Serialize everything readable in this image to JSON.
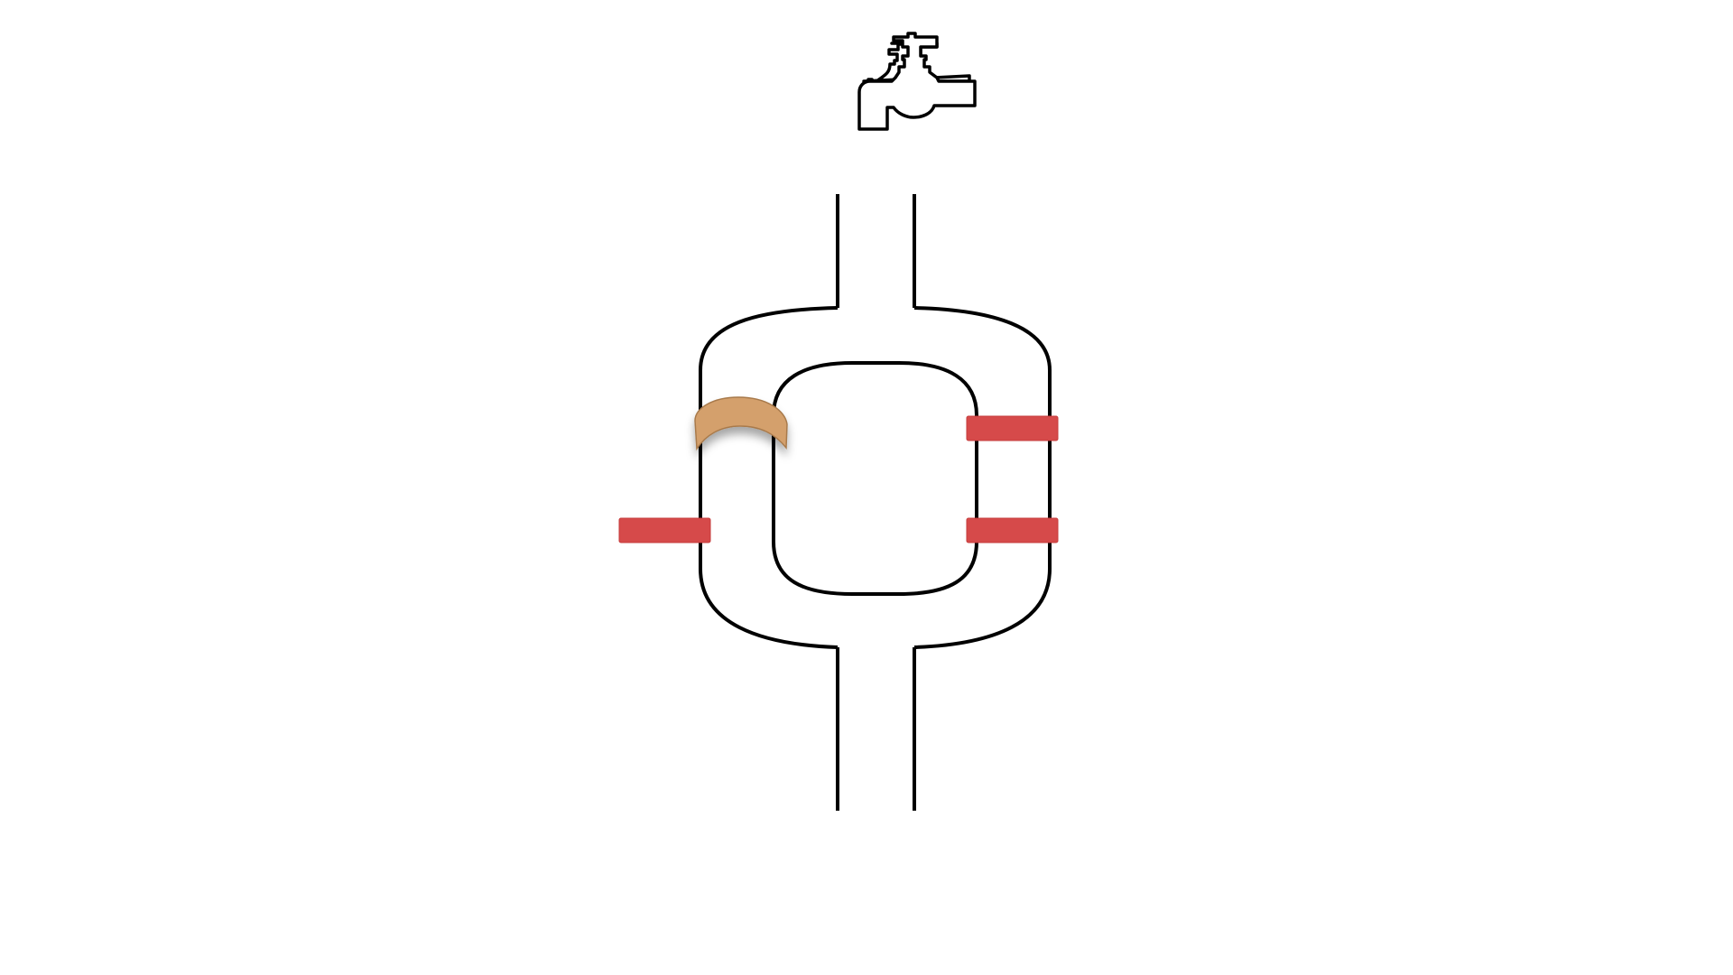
{
  "puzzle": {
    "faucet": {
      "icon": "faucet-icon",
      "stroke_color": "#000000"
    },
    "pipe": {
      "stroke_color": "#000000"
    },
    "colors": {
      "valve_closed": "#d64a4a",
      "valve_closed_edge": "#c53c3c",
      "patch": "#d4a06c",
      "patch_edge": "#a87a4c",
      "background": "#ffffff"
    },
    "valves": [
      {
        "id": "left-outer-lower",
        "state": "closed"
      },
      {
        "id": "right-upper",
        "state": "closed"
      },
      {
        "id": "right-lower",
        "state": "closed"
      }
    ],
    "patch": {
      "id": "left-upper-patch",
      "icon": "pipe-patch-icon"
    }
  }
}
